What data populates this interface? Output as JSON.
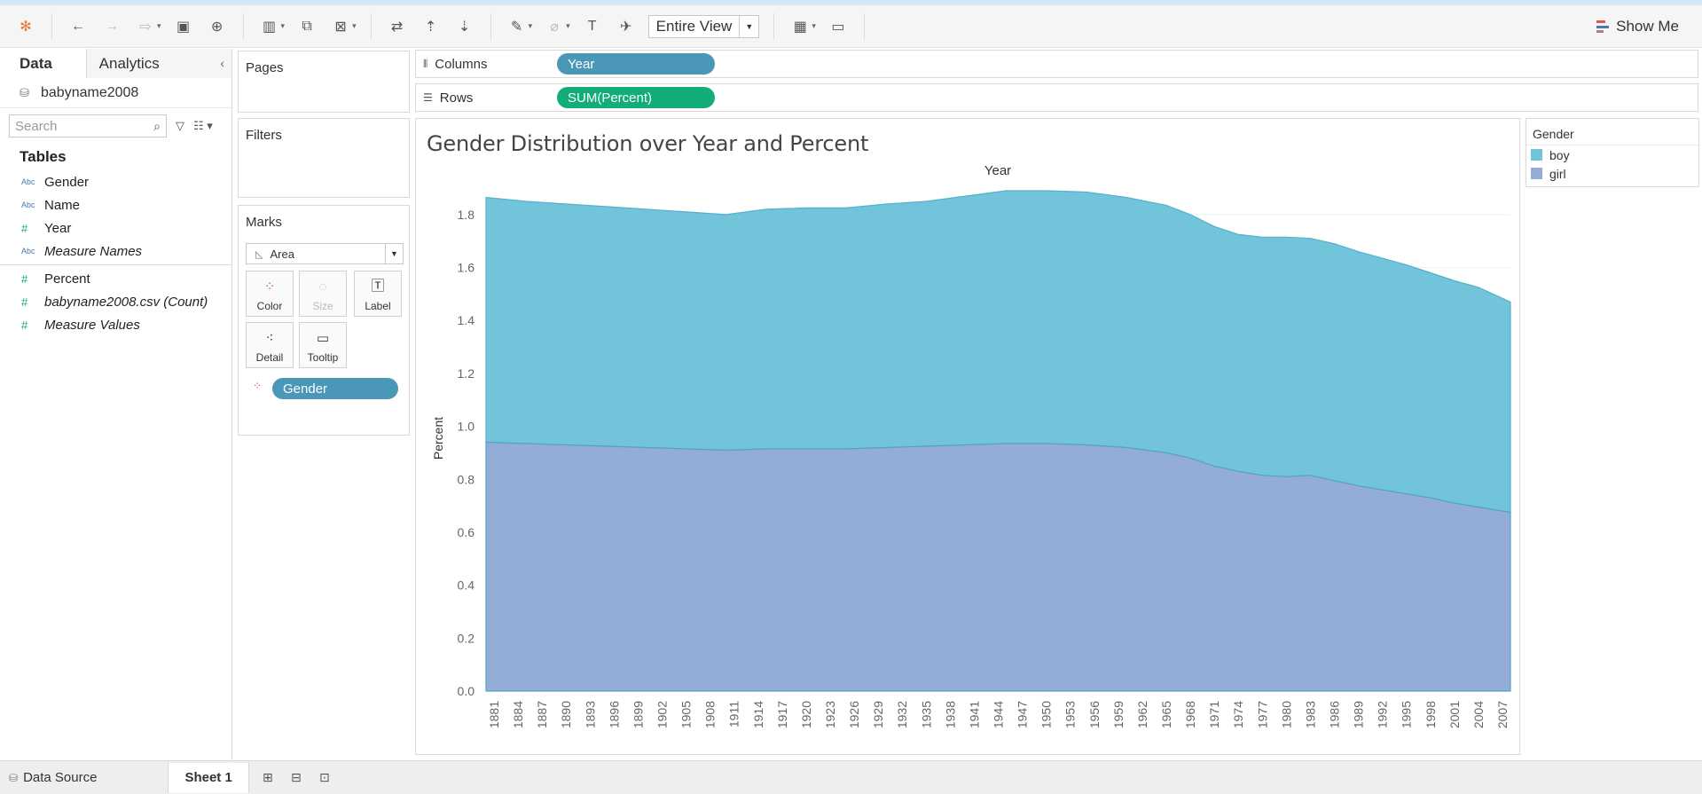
{
  "toolbar": {
    "fit_label": "Entire View",
    "show_me_label": "Show Me"
  },
  "left_pane": {
    "tab_data": "Data",
    "tab_analytics": "Analytics",
    "datasource": "babyname2008",
    "search_placeholder": "Search",
    "tables_heading": "Tables",
    "dimensions": [
      {
        "type": "Abc",
        "name": "Gender"
      },
      {
        "type": "Abc",
        "name": "Name"
      },
      {
        "type": "#",
        "name": "Year"
      },
      {
        "type": "Abc",
        "name": "Measure Names"
      }
    ],
    "measures": [
      {
        "type": "#",
        "name": "Percent"
      },
      {
        "type": "#",
        "name": "babyname2008.csv (Count)"
      },
      {
        "type": "#",
        "name": "Measure Values"
      }
    ]
  },
  "cards": {
    "pages": "Pages",
    "filters": "Filters",
    "marks": "Marks",
    "mark_type": "Area",
    "buttons": {
      "color": "Color",
      "size": "Size",
      "label": "Label",
      "detail": "Detail",
      "tooltip": "Tooltip"
    },
    "color_pill": "Gender"
  },
  "shelves": {
    "columns_label": "Columns",
    "columns_pill": "Year",
    "rows_label": "Rows",
    "rows_pill": "SUM(Percent)"
  },
  "legend": {
    "title": "Gender",
    "items": [
      {
        "label": "boy",
        "color": "#71c4da"
      },
      {
        "label": "girl",
        "color": "#93add6"
      }
    ]
  },
  "bottom": {
    "data_source_tab": "Data Source",
    "sheet_tab": "Sheet 1"
  },
  "chart_data": {
    "type": "area",
    "title": "Gender Distribution over Year and Percent",
    "x_header": "Year",
    "ylabel": "Percent",
    "ylim": [
      0,
      1.9
    ],
    "yticks": [
      0.0,
      0.2,
      0.4,
      0.6,
      0.8,
      1.0,
      1.2,
      1.4,
      1.6,
      1.8
    ],
    "x_range": [
      1880,
      2008
    ],
    "x_tick_labels": [
      "1881",
      "1884",
      "1887",
      "1890",
      "1893",
      "1896",
      "1899",
      "1902",
      "1905",
      "1908",
      "1911",
      "1914",
      "1917",
      "1920",
      "1923",
      "1926",
      "1929",
      "1932",
      "1935",
      "1938",
      "1941",
      "1944",
      "1947",
      "1950",
      "1953",
      "1956",
      "1959",
      "1962",
      "1965",
      "1968",
      "1971",
      "1974",
      "1977",
      "1980",
      "1983",
      "1986",
      "1989",
      "1992",
      "1995",
      "1998",
      "2001",
      "2004",
      "2007"
    ],
    "stacked": true,
    "series": [
      {
        "name": "girl",
        "color": "#93add6",
        "points": [
          [
            1880,
            0.94
          ],
          [
            1885,
            0.935
          ],
          [
            1890,
            0.93
          ],
          [
            1895,
            0.925
          ],
          [
            1900,
            0.92
          ],
          [
            1905,
            0.915
          ],
          [
            1910,
            0.91
          ],
          [
            1915,
            0.915
          ],
          [
            1920,
            0.915
          ],
          [
            1925,
            0.915
          ],
          [
            1930,
            0.92
          ],
          [
            1935,
            0.925
          ],
          [
            1940,
            0.93
          ],
          [
            1945,
            0.935
          ],
          [
            1950,
            0.935
          ],
          [
            1955,
            0.93
          ],
          [
            1960,
            0.92
          ],
          [
            1965,
            0.9
          ],
          [
            1968,
            0.88
          ],
          [
            1971,
            0.85
          ],
          [
            1974,
            0.83
          ],
          [
            1977,
            0.815
          ],
          [
            1980,
            0.81
          ],
          [
            1983,
            0.815
          ],
          [
            1986,
            0.795
          ],
          [
            1989,
            0.775
          ],
          [
            1992,
            0.76
          ],
          [
            1995,
            0.745
          ],
          [
            1998,
            0.73
          ],
          [
            2001,
            0.71
          ],
          [
            2004,
            0.695
          ],
          [
            2008,
            0.675
          ]
        ]
      },
      {
        "name": "boy",
        "color": "#71c4da",
        "points": [
          [
            1880,
            0.925
          ],
          [
            1885,
            0.915
          ],
          [
            1890,
            0.91
          ],
          [
            1895,
            0.905
          ],
          [
            1900,
            0.9
          ],
          [
            1905,
            0.895
          ],
          [
            1910,
            0.89
          ],
          [
            1915,
            0.905
          ],
          [
            1920,
            0.91
          ],
          [
            1925,
            0.91
          ],
          [
            1930,
            0.92
          ],
          [
            1935,
            0.925
          ],
          [
            1940,
            0.94
          ],
          [
            1945,
            0.955
          ],
          [
            1950,
            0.955
          ],
          [
            1955,
            0.955
          ],
          [
            1960,
            0.945
          ],
          [
            1965,
            0.935
          ],
          [
            1968,
            0.92
          ],
          [
            1971,
            0.905
          ],
          [
            1974,
            0.895
          ],
          [
            1977,
            0.9
          ],
          [
            1980,
            0.905
          ],
          [
            1983,
            0.895
          ],
          [
            1986,
            0.895
          ],
          [
            1989,
            0.885
          ],
          [
            1992,
            0.875
          ],
          [
            1995,
            0.865
          ],
          [
            1998,
            0.85
          ],
          [
            2001,
            0.84
          ],
          [
            2004,
            0.83
          ],
          [
            2008,
            0.795
          ]
        ]
      }
    ]
  }
}
